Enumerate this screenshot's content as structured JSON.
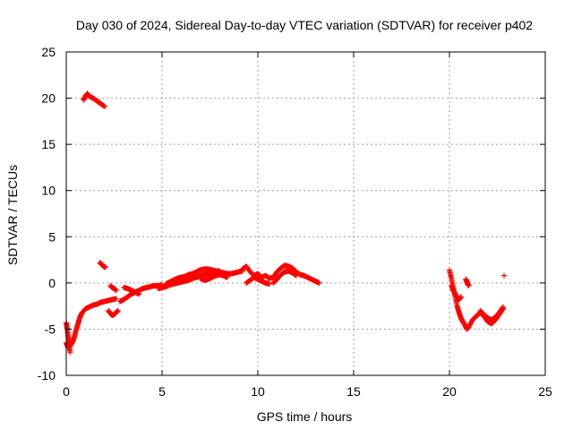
{
  "chart_data": {
    "type": "scatter",
    "title": "Day 030 of 2024, Sidereal Day-to-day VTEC variation (SDTVAR) for receiver p402",
    "xlabel": "GPS time / hours",
    "ylabel": "SDTVAR / TECUs",
    "xlim": [
      0,
      25
    ],
    "ylim": [
      -10,
      25
    ],
    "xticks": [
      0,
      5,
      10,
      15,
      20,
      25
    ],
    "yticks": [
      -10,
      -5,
      0,
      5,
      10,
      15,
      20,
      25
    ],
    "xtick_labels": [
      "0",
      "5",
      "10",
      "15",
      "20",
      "25"
    ],
    "ytick_labels": [
      "-10",
      "-5",
      "0",
      "5",
      "10",
      "15",
      "20",
      "25"
    ],
    "grid": true,
    "marker": "+",
    "series_color": "#ff0000",
    "series": [
      {
        "name": "SDTVAR",
        "segments": [
          {
            "x": [
              0.0,
              0.1,
              0.2,
              0.3,
              0.4,
              0.5,
              0.6,
              0.7,
              0.8,
              1.0,
              1.2,
              1.4,
              1.6,
              1.8,
              2.0,
              2.2,
              2.4,
              2.6
            ],
            "y": [
              -6.5,
              -7.0,
              -6.8,
              -6.5,
              -6.0,
              -5.2,
              -4.5,
              -3.8,
              -3.3,
              -2.8,
              -2.6,
              -2.4,
              -2.3,
              -2.1,
              -2.0,
              -1.9,
              -1.8,
              -1.7
            ]
          },
          {
            "x": [
              0.0,
              0.05,
              0.1,
              0.15,
              0.2
            ],
            "y": [
              -4.3,
              -5.0,
              -5.8,
              -6.5,
              -7.5
            ]
          },
          {
            "x": [
              0.9,
              1.0,
              1.1,
              1.2,
              1.4,
              1.6,
              1.8,
              2.0
            ],
            "y": [
              19.8,
              20.2,
              20.5,
              20.2,
              20.0,
              19.7,
              19.4,
              19.1
            ]
          },
          {
            "x": [
              1.75,
              1.85,
              1.95,
              2.05
            ],
            "y": [
              2.2,
              2.0,
              1.8,
              1.7
            ]
          },
          {
            "x": [
              2.2,
              2.3,
              2.4,
              2.5,
              2.6,
              2.7
            ],
            "y": [
              -3.0,
              -3.3,
              -3.5,
              -3.4,
              -3.2,
              -3.0
            ]
          },
          {
            "x": [
              2.3,
              2.4,
              2.5,
              2.6
            ],
            "y": [
              -0.3,
              -0.5,
              -0.6,
              -0.8
            ]
          },
          {
            "x": [
              2.8,
              3.0,
              3.2,
              3.4,
              3.6,
              3.8,
              4.0,
              4.2,
              4.4,
              4.6,
              4.8,
              5.0
            ],
            "y": [
              -2.0,
              -1.8,
              -1.5,
              -1.2,
              -1.0,
              -0.8,
              -0.6,
              -0.5,
              -0.4,
              -0.3,
              -0.3,
              -0.2
            ]
          },
          {
            "x": [
              3.0,
              3.2,
              3.4,
              3.6,
              3.8
            ],
            "y": [
              -0.5,
              -0.6,
              -0.8,
              -1.0,
              -1.2
            ]
          },
          {
            "x": [
              4.8,
              5.0,
              5.2,
              5.4,
              5.6,
              5.8,
              6.0,
              6.2,
              6.4,
              6.6,
              6.8,
              7.0,
              7.2,
              7.4,
              7.6,
              7.8,
              8.0,
              8.2,
              8.4,
              8.6,
              8.8,
              9.0,
              9.2
            ],
            "y": [
              -0.6,
              -0.5,
              -0.4,
              -0.2,
              -0.1,
              0.0,
              0.1,
              0.2,
              0.3,
              0.5,
              0.6,
              0.8,
              0.9,
              1.0,
              1.1,
              1.2,
              1.2,
              1.1,
              1.0,
              1.0,
              1.1,
              1.2,
              1.3
            ]
          },
          {
            "x": [
              5.2,
              5.4,
              5.6,
              5.8,
              6.0,
              6.2,
              6.4,
              6.6,
              6.8,
              7.0,
              7.2,
              7.4,
              7.6,
              7.8,
              8.0
            ],
            "y": [
              -0.1,
              0.1,
              0.3,
              0.5,
              0.6,
              0.7,
              0.9,
              1.0,
              1.2,
              1.4,
              1.5,
              1.5,
              1.4,
              1.3,
              1.3
            ]
          },
          {
            "x": [
              7.0,
              7.2,
              7.4,
              7.6,
              7.8,
              8.0,
              8.2,
              8.4
            ],
            "y": [
              0.5,
              0.3,
              0.4,
              0.6,
              0.8,
              0.9,
              0.8,
              0.6
            ]
          },
          {
            "x": [
              9.2,
              9.4,
              9.6,
              9.8,
              10.0,
              10.2,
              10.4,
              10.6,
              10.8,
              11.0,
              11.2,
              11.4,
              11.6,
              11.8,
              12.0,
              12.2,
              12.4,
              12.6,
              12.8,
              13.0,
              13.2
            ],
            "y": [
              1.5,
              1.8,
              1.2,
              0.8,
              1.0,
              0.6,
              0.8,
              0.5,
              0.6,
              1.2,
              1.6,
              1.9,
              1.8,
              1.6,
              1.2,
              0.9,
              0.8,
              0.6,
              0.4,
              0.2,
              0.0
            ]
          },
          {
            "x": [
              9.4,
              9.6,
              9.8,
              10.0,
              10.2,
              10.4,
              10.6
            ],
            "y": [
              0.0,
              0.3,
              0.6,
              0.4,
              0.2,
              0.0,
              -0.1
            ]
          },
          {
            "x": [
              10.8,
              11.0,
              11.2,
              11.4,
              11.6,
              11.8,
              12.0
            ],
            "y": [
              0.0,
              0.4,
              0.9,
              1.2,
              1.3,
              1.1,
              0.8
            ]
          },
          {
            "x": [
              20.0,
              20.1,
              20.2,
              20.3,
              20.4,
              20.5,
              20.6,
              20.7,
              20.8,
              20.9,
              21.0,
              21.2,
              21.4,
              21.6,
              21.8,
              22.0,
              22.2,
              22.4,
              22.6,
              22.8
            ],
            "y": [
              1.4,
              0.5,
              -0.5,
              -1.5,
              -2.5,
              -3.2,
              -3.8,
              -4.2,
              -4.5,
              -5.0,
              -4.8,
              -4.0,
              -3.6,
              -3.2,
              -3.6,
              -4.2,
              -4.4,
              -4.0,
              -3.4,
              -2.8
            ]
          },
          {
            "x": [
              20.1,
              20.2,
              20.3,
              20.4,
              20.5,
              20.6
            ],
            "y": [
              -0.3,
              -0.8,
              -1.2,
              -1.6,
              -1.8,
              -1.5
            ]
          },
          {
            "x": [
              20.85,
              20.9,
              20.95,
              21.0
            ],
            "y": [
              0.4,
              0.2,
              -0.1,
              -0.3
            ]
          },
          {
            "x": [
              21.6,
              21.8,
              22.0,
              22.2,
              22.4,
              22.6,
              22.8
            ],
            "y": [
              -3.0,
              -3.4,
              -3.8,
              -4.0,
              -3.7,
              -3.2,
              -2.6
            ]
          },
          {
            "x": [
              22.85
            ],
            "y": [
              0.8
            ]
          }
        ]
      }
    ]
  }
}
